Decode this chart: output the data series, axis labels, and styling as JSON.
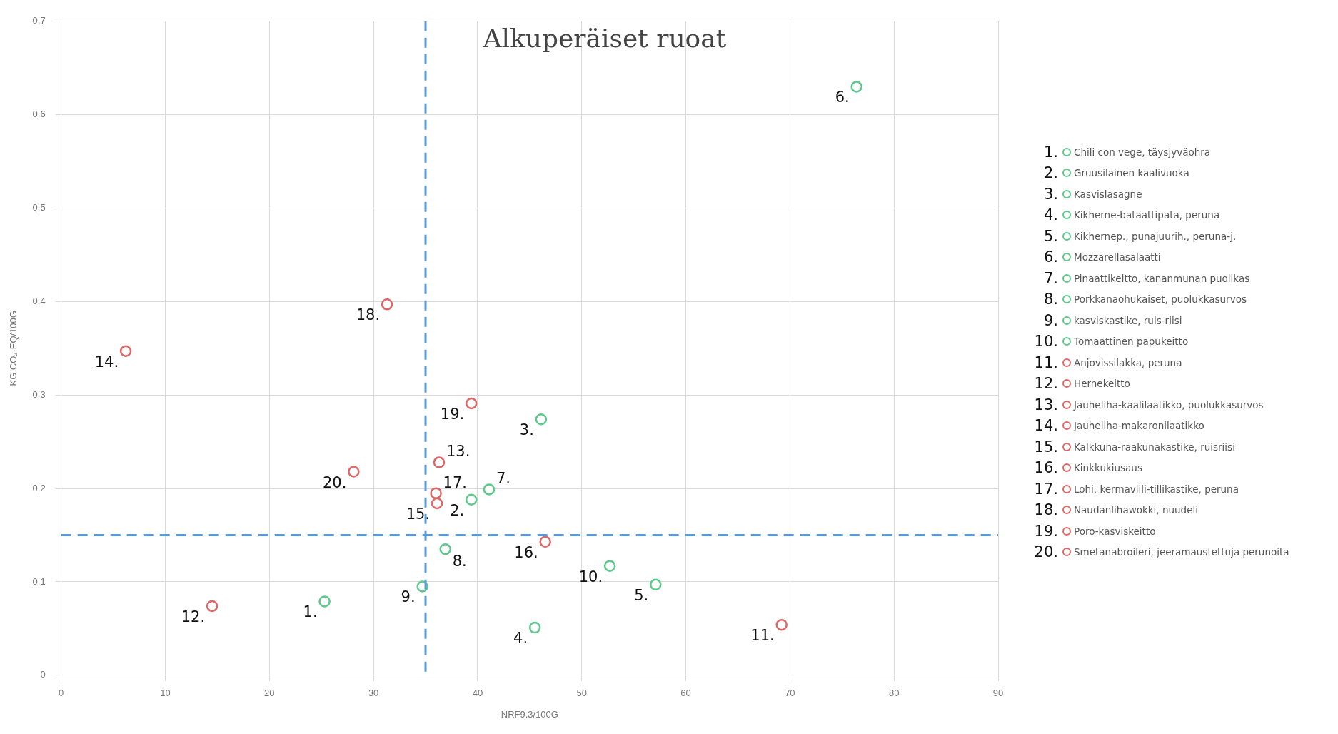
{
  "chart_data": {
    "type": "scatter",
    "title": "Alkuperäiset ruoat",
    "xlabel": "NRF9.3/100G",
    "ylabel": "KG CO₂-EQ/100G",
    "xlim": [
      0,
      90
    ],
    "xticks": [
      0,
      10,
      20,
      30,
      40,
      50,
      60,
      70,
      80,
      90
    ],
    "ylim": [
      0,
      0.7
    ],
    "yticks": [
      {
        "value": 0,
        "label": "0"
      },
      {
        "value": 0.1,
        "label": "0,1"
      },
      {
        "value": 0.2,
        "label": "0,2"
      },
      {
        "value": 0.3,
        "label": "0,3"
      },
      {
        "value": 0.4,
        "label": "0,4"
      },
      {
        "value": 0.5,
        "label": "0,5"
      },
      {
        "value": 0.6,
        "label": "0,6"
      },
      {
        "value": 0.7,
        "label": "0,7"
      }
    ],
    "grid": true,
    "legend": "right",
    "marker": "circle",
    "ref_lines": [
      {
        "axis": "x",
        "value": 35,
        "label": null,
        "color": "#5b9bd5",
        "line_style": "dashed"
      },
      {
        "axis": "y",
        "value": 0.15,
        "label": null,
        "color": "#5b9bd5",
        "line_style": "dashed"
      }
    ],
    "annotations": [
      {
        "text": "1.",
        "x": 25.3,
        "y": 0.079
      },
      {
        "text": "2.",
        "x": 39.4,
        "y": 0.188
      },
      {
        "text": "3.",
        "x": 46.1,
        "y": 0.274
      },
      {
        "text": "4.",
        "x": 45.5,
        "y": 0.051
      },
      {
        "text": "5.",
        "x": 57.1,
        "y": 0.097
      },
      {
        "text": "6.",
        "x": 76.4,
        "y": 0.63
      },
      {
        "text": "7.",
        "x": 41.1,
        "y": 0.199
      },
      {
        "text": "8.",
        "x": 36.9,
        "y": 0.135
      },
      {
        "text": "9.",
        "x": 34.7,
        "y": 0.095
      },
      {
        "text": "10.",
        "x": 52.7,
        "y": 0.117
      },
      {
        "text": "11.",
        "x": 69.2,
        "y": 0.054
      },
      {
        "text": "12.",
        "x": 14.5,
        "y": 0.074
      },
      {
        "text": "13.",
        "x": 36.3,
        "y": 0.228
      },
      {
        "text": "14.",
        "x": 6.2,
        "y": 0.347
      },
      {
        "text": "15.",
        "x": 36.1,
        "y": 0.184
      },
      {
        "text": "16.",
        "x": 46.5,
        "y": 0.143
      },
      {
        "text": "17.",
        "x": 36.0,
        "y": 0.195
      },
      {
        "text": "18.",
        "x": 31.3,
        "y": 0.397
      },
      {
        "text": "19.",
        "x": 39.4,
        "y": 0.291
      },
      {
        "text": "20.",
        "x": 28.1,
        "y": 0.218
      }
    ],
    "series": [
      {
        "name": "Chili con vege, täysjyväohra",
        "color": "#5cc98a",
        "x": [
          25.3
        ],
        "values": [
          0.079
        ]
      },
      {
        "name": "Gruusilainen kaalivuoka",
        "color": "#5cc98a",
        "x": [
          39.4
        ],
        "values": [
          0.188
        ]
      },
      {
        "name": "Kasvislasagne",
        "color": "#5cc98a",
        "x": [
          46.1
        ],
        "values": [
          0.274
        ]
      },
      {
        "name": "Kikherne-bataattipata, peruna",
        "color": "#5cc98a",
        "x": [
          45.5
        ],
        "values": [
          0.051
        ]
      },
      {
        "name": "Kikhernep., punajuurih., peruna-j.",
        "color": "#5cc98a",
        "x": [
          57.1
        ],
        "values": [
          0.097
        ]
      },
      {
        "name": "Mozzarellasalaatti",
        "color": "#5cc98a",
        "x": [
          76.4
        ],
        "values": [
          0.63
        ]
      },
      {
        "name": "Pinaattikeitto, kananmunan puolikas",
        "color": "#5cc98a",
        "x": [
          41.1
        ],
        "values": [
          0.199
        ]
      },
      {
        "name": "Porkkanaohukaiset, puolukkasurvos",
        "color": "#5cc98a",
        "x": [
          36.9
        ],
        "values": [
          0.135
        ]
      },
      {
        "name": "kasviskastike, ruis-riisi",
        "color": "#5cc98a",
        "x": [
          34.7
        ],
        "values": [
          0.095
        ]
      },
      {
        "name": "Tomaattinen papukeitto",
        "color": "#5cc98a",
        "x": [
          52.7
        ],
        "values": [
          0.117
        ]
      },
      {
        "name": "Anjovissilakka, peruna",
        "color": "#e06666",
        "x": [
          69.2
        ],
        "values": [
          0.054
        ]
      },
      {
        "name": "Hernekeitto",
        "color": "#e06666",
        "x": [
          14.5
        ],
        "values": [
          0.074
        ]
      },
      {
        "name": "Jauheliha-kaalilaatikko, puolukkasurvos",
        "color": "#e06666",
        "x": [
          36.3
        ],
        "values": [
          0.228
        ]
      },
      {
        "name": "Jauheliha-makaronilaatikko",
        "color": "#e06666",
        "x": [
          6.2
        ],
        "values": [
          0.347
        ]
      },
      {
        "name": "Kalkkuna-raakunakastike, ruisriisi",
        "color": "#e06666",
        "x": [
          36.1
        ],
        "values": [
          0.184
        ]
      },
      {
        "name": "Kinkkukiusaus",
        "color": "#e06666",
        "x": [
          46.5
        ],
        "values": [
          0.143
        ]
      },
      {
        "name": "Lohi, kermaviili-tillikastike, peruna",
        "color": "#e06666",
        "x": [
          36.0
        ],
        "values": [
          0.195
        ]
      },
      {
        "name": "Naudanlihawokki, nuudeli",
        "color": "#e06666",
        "x": [
          31.3
        ],
        "values": [
          0.397
        ]
      },
      {
        "name": "Poro-kasviskeitto",
        "color": "#e06666",
        "x": [
          39.4
        ],
        "values": [
          0.291
        ]
      },
      {
        "name": "Smetanabroileri, jeeramaustettuja perunoita",
        "color": "#e06666",
        "x": [
          28.1
        ],
        "values": [
          0.218
        ]
      }
    ]
  }
}
